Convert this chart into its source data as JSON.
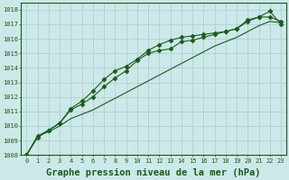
{
  "title": "Graphe pression niveau de la mer (hPa)",
  "background_color": "#cce8e8",
  "grid_color": "#aacccc",
  "line_color": "#1a5c1a",
  "xlim": [
    -0.5,
    23.5
  ],
  "ylim": [
    1008,
    1018.5
  ],
  "xticks": [
    0,
    1,
    2,
    3,
    4,
    5,
    6,
    7,
    8,
    9,
    10,
    11,
    12,
    13,
    14,
    15,
    16,
    17,
    18,
    19,
    20,
    21,
    22,
    23
  ],
  "yticks": [
    1008,
    1009,
    1010,
    1011,
    1012,
    1013,
    1014,
    1015,
    1016,
    1017,
    1018
  ],
  "series1_x": [
    0,
    1,
    2,
    3,
    4,
    5,
    6,
    7,
    8,
    9,
    10,
    11,
    12,
    13,
    14,
    15,
    16,
    17,
    18,
    19,
    20,
    21,
    22,
    23
  ],
  "series1_y": [
    1008.0,
    1009.3,
    1009.6,
    1010.0,
    1010.5,
    1010.8,
    1011.1,
    1011.5,
    1011.9,
    1012.3,
    1012.7,
    1013.1,
    1013.5,
    1013.9,
    1014.3,
    1014.7,
    1015.1,
    1015.5,
    1015.8,
    1016.1,
    1016.5,
    1016.9,
    1017.2,
    1017.1
  ],
  "series2_x": [
    0,
    1,
    2,
    3,
    4,
    5,
    6,
    7,
    8,
    9,
    10,
    11,
    12,
    13,
    14,
    15,
    16,
    17,
    18,
    19,
    20,
    21,
    22,
    23
  ],
  "series2_y": [
    1008.0,
    1009.3,
    1009.7,
    1010.2,
    1011.1,
    1011.5,
    1012.0,
    1012.7,
    1013.3,
    1013.8,
    1014.5,
    1015.0,
    1015.2,
    1015.3,
    1015.8,
    1015.9,
    1016.1,
    1016.3,
    1016.5,
    1016.7,
    1017.2,
    1017.5,
    1017.5,
    1017.2
  ],
  "series3_x": [
    0,
    1,
    2,
    3,
    4,
    5,
    6,
    7,
    8,
    9,
    10,
    11,
    12,
    13,
    14,
    15,
    16,
    17,
    18,
    19,
    20,
    21,
    22,
    23
  ],
  "series3_y": [
    1008.0,
    1009.2,
    1009.7,
    1010.2,
    1011.2,
    1011.7,
    1012.4,
    1013.2,
    1013.8,
    1014.1,
    1014.6,
    1015.2,
    1015.6,
    1015.9,
    1016.1,
    1016.2,
    1016.3,
    1016.4,
    1016.5,
    1016.7,
    1017.3,
    1017.5,
    1017.9,
    1017.0
  ],
  "marker": "D",
  "markersize": 2.5,
  "linewidth": 0.8,
  "title_fontsize": 7.5,
  "tick_fontsize": 5.0
}
